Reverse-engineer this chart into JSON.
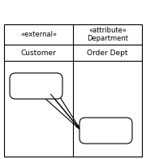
{
  "bg_color": "#ffffff",
  "border_color": "#000000",
  "text_color": "#000000",
  "fig_width": 1.8,
  "fig_height": 1.96,
  "dpi": 100,
  "left_label1": "«external»",
  "left_label2": "Customer",
  "right_label1": "«attribute»",
  "right_label2": "Department",
  "right_label3": "Order Dept",
  "font_size_small": 6.0,
  "font_size_name": 6.5,
  "line_width": 0.8
}
